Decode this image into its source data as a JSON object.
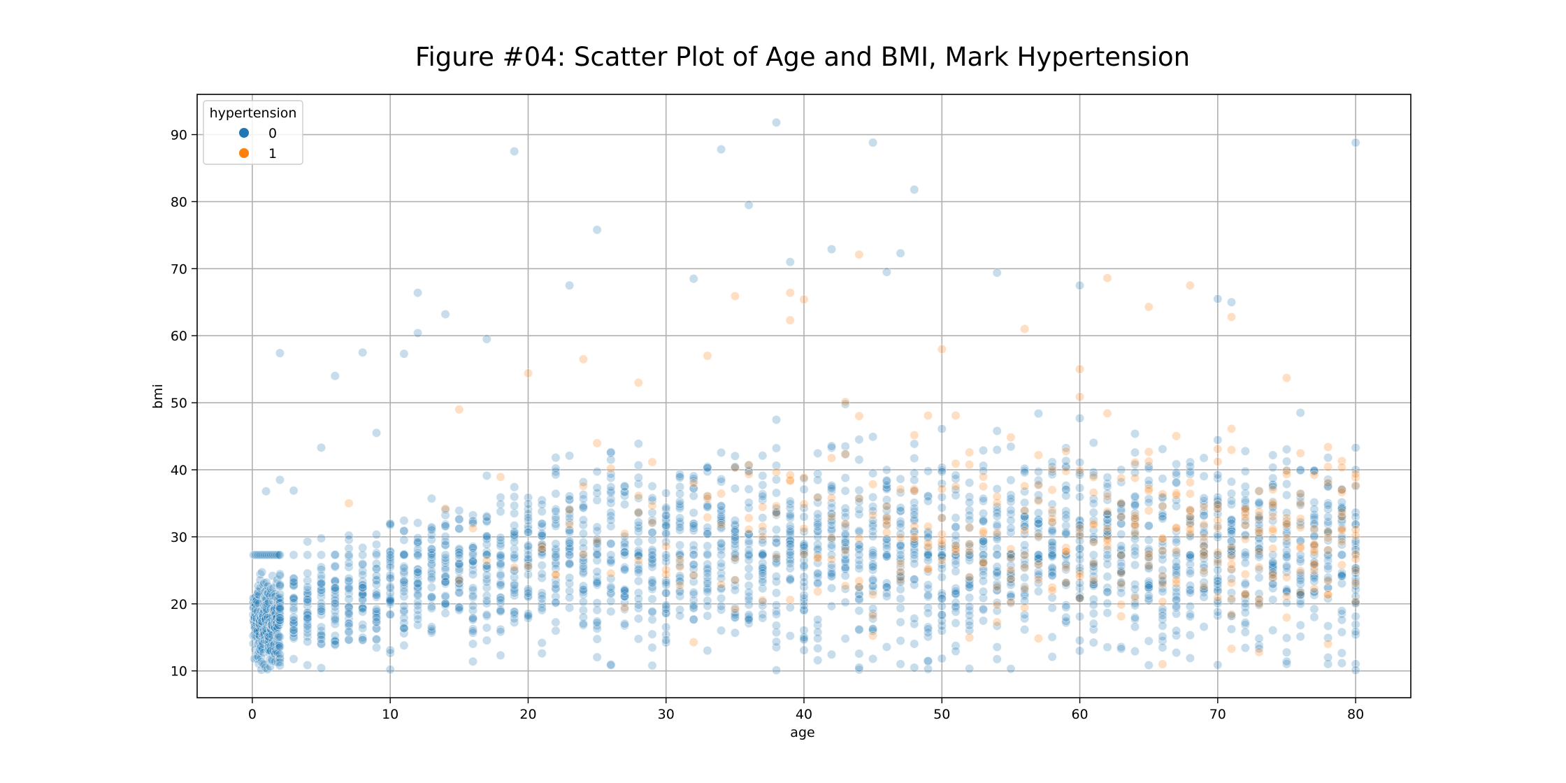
{
  "colors": {
    "series_0": "#1f77b4",
    "series_1": "#ff7f0e",
    "grid": "#b0b0b0"
  },
  "chart_data": {
    "type": "scatter",
    "title": "Figure #04: Scatter Plot of Age and BMI, Mark Hypertension",
    "xlabel": "age",
    "ylabel": "bmi",
    "xlim": [
      -4,
      84
    ],
    "ylim": [
      6,
      96
    ],
    "xticks": [
      0,
      10,
      20,
      30,
      40,
      50,
      60,
      70,
      80
    ],
    "yticks": [
      10,
      20,
      30,
      40,
      50,
      60,
      70,
      80,
      90
    ],
    "grid": true,
    "point_alpha": 0.25,
    "legend": {
      "title": "hypertension",
      "placement": "top-left",
      "entries": [
        {
          "label": "0",
          "color": "#1f77b4"
        },
        {
          "label": "1",
          "color": "#ff7f0e"
        }
      ]
    },
    "series": [
      {
        "name": "0",
        "color": "#1f77b4",
        "approximate_distribution": {
          "x_range": [
            0.08,
            80
          ],
          "typical_y_range": [
            15,
            45
          ],
          "dense_line_y": 27.3,
          "y_min": 10,
          "y_max": 92
        },
        "points": [
          [
            19,
            87.5
          ],
          [
            34,
            87.8
          ],
          [
            38,
            91.8
          ],
          [
            45,
            88.8
          ],
          [
            48,
            81.8
          ],
          [
            80,
            88.8
          ],
          [
            36,
            79.5
          ],
          [
            25,
            75.8
          ],
          [
            42,
            72.9
          ],
          [
            47,
            72.3
          ],
          [
            23,
            67.5
          ],
          [
            12,
            66.4
          ],
          [
            39,
            71.0
          ],
          [
            32,
            68.5
          ],
          [
            46,
            69.5
          ],
          [
            54,
            69.4
          ],
          [
            60,
            67.5
          ],
          [
            70,
            65.5
          ],
          [
            71,
            65.0
          ],
          [
            2,
            57.4
          ],
          [
            8,
            57.5
          ],
          [
            11,
            57.3
          ],
          [
            6,
            54.0
          ],
          [
            5,
            43.3
          ],
          [
            9,
            45.5
          ],
          [
            14,
            63.2
          ],
          [
            12,
            60.4
          ],
          [
            17,
            59.5
          ],
          [
            2,
            38.5
          ],
          [
            1,
            36.8
          ],
          [
            3,
            36.9
          ],
          [
            16,
            11.4
          ],
          [
            29,
            10.8
          ],
          [
            38,
            10.1
          ],
          [
            45,
            11.8
          ],
          [
            70,
            10.9
          ],
          [
            80,
            10.1
          ],
          [
            58,
            12.1
          ],
          [
            78,
            12.0
          ],
          [
            30,
            14.6
          ],
          [
            63,
            13.3
          ],
          [
            10,
            10.2
          ]
        ]
      },
      {
        "name": "1",
        "color": "#ff7f0e",
        "approximate_distribution": {
          "x_range": [
            7,
            80
          ],
          "typical_y_range": [
            20,
            50
          ],
          "y_min": 11,
          "y_max": 72
        },
        "points": [
          [
            44,
            72.1
          ],
          [
            35,
            65.9
          ],
          [
            40,
            65.4
          ],
          [
            39,
            66.4
          ],
          [
            62,
            68.6
          ],
          [
            68,
            67.5
          ],
          [
            71,
            62.8
          ],
          [
            39,
            62.3
          ],
          [
            56,
            61.0
          ],
          [
            65,
            64.3
          ],
          [
            20,
            54.4
          ],
          [
            33,
            57.0
          ],
          [
            66,
            11.0
          ],
          [
            71,
            13.3
          ],
          [
            73,
            12.8
          ],
          [
            75,
            53.7
          ],
          [
            15,
            49.0
          ],
          [
            7,
            35.0
          ],
          [
            60,
            55.0
          ],
          [
            50,
            58.0
          ],
          [
            24,
            56.5
          ],
          [
            28,
            53.0
          ],
          [
            52,
            24.0
          ],
          [
            48,
            30.0
          ]
        ]
      }
    ]
  }
}
